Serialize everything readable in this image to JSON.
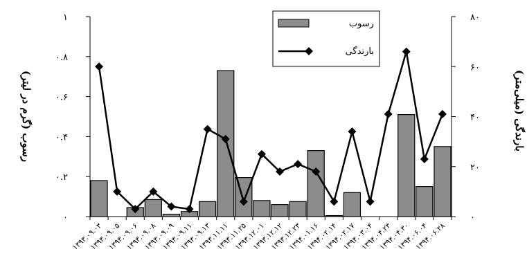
{
  "chart_data": {
    "type": "bar",
    "title": "",
    "categories": [
      "۱۳۹۳.۰۹.۰۳",
      "۱۳۹۳.۰۹.۰۵",
      "۱۳۹۳.۰۹.۰۶",
      "۱۳۹۳.۰۹.۰۸",
      "۱۳۹۳.۰۹.۰۹",
      "۱۳۹۳.۰۹.۱۱",
      "۱۳۹۳.۰۹.۱۳",
      "۱۳۹۳.۱۱.۱۱",
      "۱۳۹۳.۱۱.۲۵",
      "۱۳۹۳.۱۲.۰۱",
      "۱۳۹۳.۱۲.۱۲",
      "۱۳۹۳.۱۲.۲۳",
      "۱۳۹۴.۰۱.۱۶",
      "۱۳۹۴.۰۲.۱۴",
      "۱۳۹۴.۰۲.۱۷",
      "۱۳۹۴.۰۳.۰۴",
      "۱۳۹۴.۰۴.۲۳",
      "۱۳۹۴.۰۴.۳۰",
      "۱۳۹۴.۰۶.۰۴",
      "۱۳۹۴.۰۶.۲۸"
    ],
    "x_tick_labels": [
      "۱۳۹۳.۰۹.۰۳",
      "۱۳۹۳.۰۹.۰۵",
      "۱۳۹۳.۰۹.۰۶",
      "۱۳۹۳.۰۹.۰۸",
      "۱۳۹۳.۰۹.۰۹",
      "۱۳۹۳.۰۹.۱۱",
      "۱۳۹۳.۰۹.۱۳",
      "۱۳۹۳.۱۱.۱۱",
      "۱۳۹۳.۱۱.۲۵",
      "۱۳۹۳.۱۲.۰۱",
      "۱۳۹۳.۱۲.۱۲",
      "۱۳۹۳.۱۲.۲۳",
      "۱۳۹۴.۰۱.۱۶",
      "۱۳۹۴.۰۲.۱۴",
      "۱۳۹۴.۰۲.۱۷",
      "۱۳۹۴.۰۳.۰۴",
      "۱۳۹۴.۰۴.۲۳",
      "۱۳۹۴.۰۴.۳۰",
      "۱۳۹۴.۰۶.۰۴",
      "۱۳۹۴.۰۶.۲۸"
    ],
    "series": [
      {
        "name": "رسوب",
        "type": "bar",
        "axis": "left",
        "color": "#8c8c8c",
        "values": [
          0.18,
          null,
          0.045,
          0.085,
          0.012,
          0.025,
          0.075,
          0.73,
          0.195,
          0.08,
          0.06,
          0.075,
          0.33,
          0.005,
          0.12,
          null,
          null,
          0.51,
          0.15,
          0.35
        ]
      },
      {
        "name": "بارندگی",
        "type": "line",
        "axis": "right",
        "color": "#000000",
        "values": [
          60,
          10,
          3,
          10,
          4,
          3,
          35,
          31,
          6,
          25,
          18,
          21,
          18,
          6,
          34,
          6,
          41,
          66,
          23,
          41
        ]
      }
    ],
    "y_left": {
      "label": "رسوب (گرم در لیتر)",
      "range": [
        0,
        1
      ],
      "ticks": [
        0,
        0.2,
        0.4,
        0.6,
        0.8,
        1
      ],
      "tick_labels": [
        "۰",
        "۰.۲",
        "۰.۴",
        "۰.۶",
        "۰.۸",
        "۱"
      ]
    },
    "y_right": {
      "label": "بارندگی (میلی‌متر)",
      "range": [
        0,
        80
      ],
      "ticks": [
        0,
        20,
        40,
        60,
        80
      ],
      "tick_labels": [
        "۰",
        "۲۰",
        "۴۰",
        "۶۰",
        "۸۰"
      ]
    },
    "grid": false,
    "legend_position": "top-right",
    "line_marker": "diamond"
  }
}
